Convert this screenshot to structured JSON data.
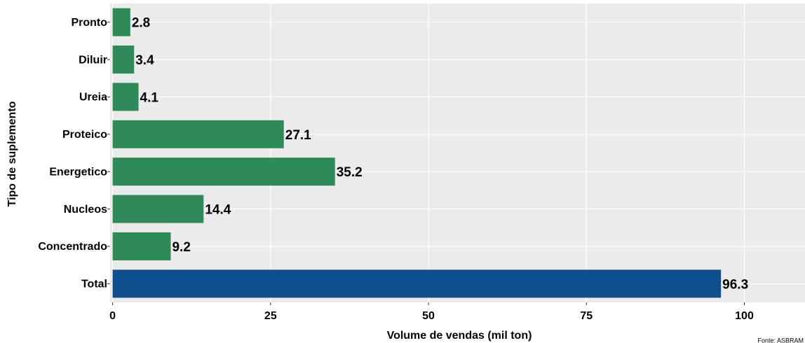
{
  "chart_data": {
    "type": "bar",
    "orientation": "horizontal",
    "categories": [
      "Pronto",
      "Diluir",
      "Ureia",
      "Proteico",
      "Energetico",
      "Nucleos",
      "Concentrado",
      "Total"
    ],
    "values": [
      2.8,
      3.4,
      4.1,
      27.1,
      35.2,
      14.4,
      9.2,
      96.3
    ],
    "colors": [
      "#2e8b57",
      "#2e8b57",
      "#2e8b57",
      "#2e8b57",
      "#2e8b57",
      "#2e8b57",
      "#2e8b57",
      "#0f4e8c"
    ],
    "xlabel": "Volume de vendas (mil ton)",
    "ylabel": "Tipo de suplemento",
    "caption": "Fonte: ASBRAM",
    "xlim": [
      -0.4,
      109.6
    ],
    "xticks": [
      0,
      25,
      50,
      75,
      100
    ],
    "grid": true
  }
}
